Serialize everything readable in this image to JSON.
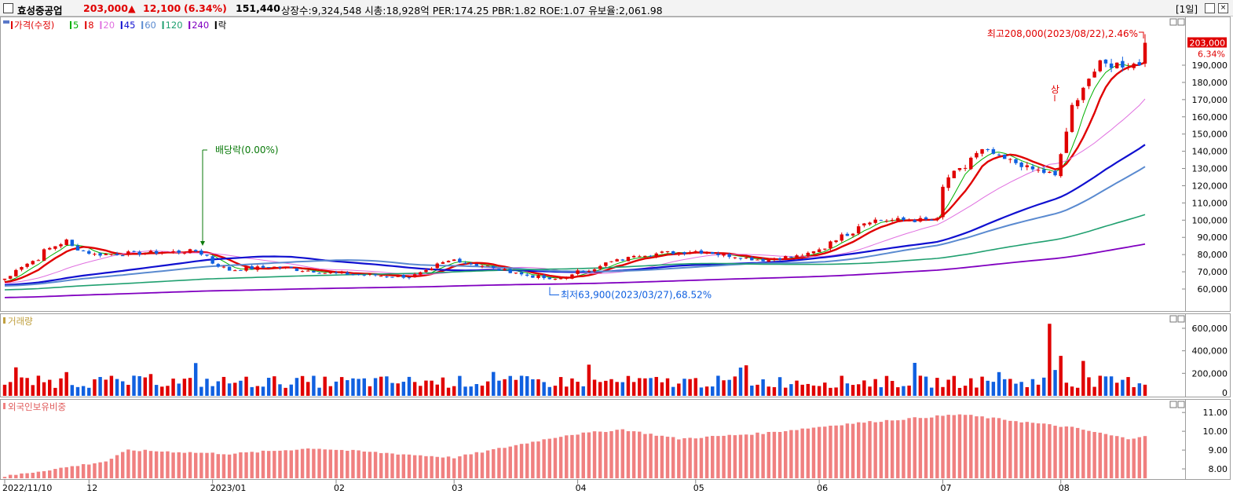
{
  "header": {
    "name": "효성중공업",
    "price": "203,000",
    "change_arrow": "▲",
    "change": "12,100",
    "change_pct": "(6.34%)",
    "volume": "151,440",
    "stats": "상장수:9,324,548 시총:18,928억 PER:174.25 PBR:1.82 ROE:1.07 유보율:2,061.98",
    "period": "[1일]"
  },
  "price_panel": {
    "legend": [
      {
        "text": "가격(수정)",
        "color": "#e00000"
      },
      {
        "text": "5",
        "color": "#00b000"
      },
      {
        "text": "8",
        "color": "#e00000"
      },
      {
        "text": "20",
        "color": "#e070e0"
      },
      {
        "text": "45",
        "color": "#1010d0"
      },
      {
        "text": "60",
        "color": "#5a8ad0"
      },
      {
        "text": "120",
        "color": "#20a070"
      },
      {
        "text": "240",
        "color": "#8000c0"
      },
      {
        "text": "락",
        "color": "#000000"
      }
    ],
    "y_ticks": [
      "60,000",
      "70,000",
      "80,000",
      "90,000",
      "100,000",
      "110,000",
      "120,000",
      "130,000",
      "140,000",
      "150,000",
      "160,000",
      "170,000",
      "180,000",
      "190,000"
    ],
    "current_price_label": "203,000",
    "current_pct_label": "6.34%",
    "annotation_high": "최고208,000(2023/08/22),2.46%",
    "annotation_low": "최저63,900(2023/03/27),68.52%",
    "annotation_dividend": "배당락(0.00%)",
    "annotation_limit": "상"
  },
  "volume_panel": {
    "legend": "거래량",
    "y_ticks": [
      "200,000",
      "400,000",
      "600,000"
    ]
  },
  "foreign_panel": {
    "legend": "외국인보유비중",
    "y_ticks": [
      "8.00",
      "9.00",
      "10.00",
      "11.00"
    ]
  },
  "x_labels": [
    "2022/11/10",
    "12",
    "2023/01",
    "02",
    "03",
    "04",
    "05",
    "06",
    "07",
    "08"
  ],
  "colors": {
    "up": "#e00000",
    "down": "#1060e0",
    "foreign_bar": "#f08080",
    "panel_border": "#9e9e9e"
  },
  "chart_data": {
    "type": "candlestick",
    "period": "daily",
    "date_range": [
      "2022-11-10",
      "2023-08-22"
    ],
    "price_range": [
      55000,
      210000
    ],
    "anchors": [
      {
        "date": "2022-11-10",
        "close": 66000
      },
      {
        "date": "2022-11-25",
        "close": 88000
      },
      {
        "date": "2022-12-02",
        "close": 80000
      },
      {
        "date": "2022-12-28",
        "close": 82000
      },
      {
        "date": "2023-01-05",
        "close": 71000
      },
      {
        "date": "2023-01-16",
        "close": 73000
      },
      {
        "date": "2023-02-01",
        "close": 69000
      },
      {
        "date": "2023-02-20",
        "close": 67000
      },
      {
        "date": "2023-03-02",
        "close": 77000
      },
      {
        "date": "2023-03-27",
        "close": 65000
      },
      {
        "date": "2023-04-17",
        "close": 80000
      },
      {
        "date": "2023-05-02",
        "close": 82000
      },
      {
        "date": "2023-05-18",
        "close": 77000
      },
      {
        "date": "2023-05-30",
        "close": 80000
      },
      {
        "date": "2023-06-14",
        "close": 100000
      },
      {
        "date": "2023-06-30",
        "close": 100000
      },
      {
        "date": "2023-07-04",
        "close": 125000
      },
      {
        "date": "2023-07-12",
        "close": 140000
      },
      {
        "date": "2023-07-24",
        "close": 130000
      },
      {
        "date": "2023-07-31",
        "close": 125000
      },
      {
        "date": "2023-08-03",
        "close": 165000
      },
      {
        "date": "2023-08-10",
        "close": 190000
      },
      {
        "date": "2023-08-21",
        "close": 191000
      },
      {
        "date": "2023-08-22",
        "close": 203000
      }
    ],
    "high": {
      "value": 208000,
      "date": "2023-08-22"
    },
    "low": {
      "value": 63900,
      "date": "2023-03-27"
    },
    "moving_averages": [
      5,
      8,
      20,
      45,
      60,
      120,
      240
    ],
    "volume_max_approx": 640000,
    "foreign_ratio_range": [
      7.5,
      11.0
    ]
  }
}
